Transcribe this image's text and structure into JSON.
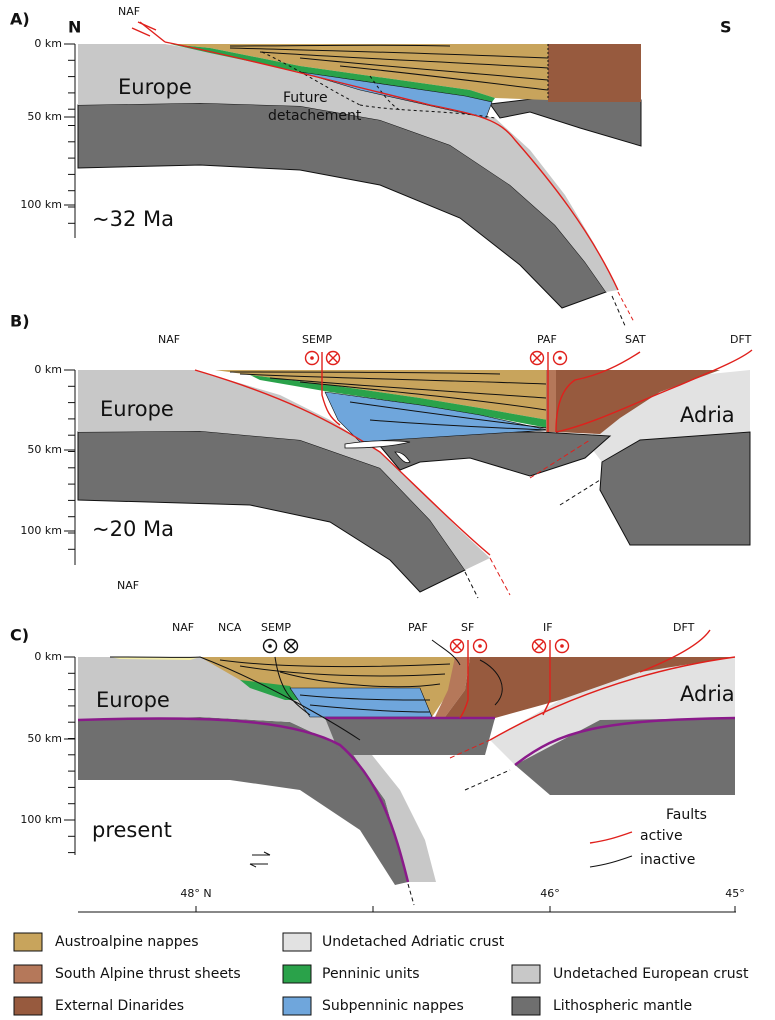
{
  "panels": [
    {
      "label": "A)",
      "north": "N",
      "south": "S",
      "depth_ticks": [
        "0 km",
        "50 km",
        "100 km"
      ],
      "faults": [
        "NAF"
      ],
      "units": [
        "Europe"
      ],
      "annotation": [
        "Future",
        "detachement"
      ],
      "age": "~32 Ma"
    },
    {
      "label": "B)",
      "depth_ticks": [
        "0 km",
        "50 km",
        "100 km"
      ],
      "faults": [
        "NAF",
        "SEMP",
        "PAF",
        "SAT",
        "DFT"
      ],
      "units": [
        "Europe",
        "Adria"
      ],
      "age": "~20 Ma",
      "extra_labels": [
        "NAF"
      ]
    },
    {
      "label": "C)",
      "depth_ticks": [
        "0 km",
        "50 km",
        "100 km"
      ],
      "faults": [
        "NAF",
        "NCA",
        "SEMP",
        "PAF",
        "SF",
        "IF",
        "DFT"
      ],
      "units": [
        "Europe",
        "Adria"
      ],
      "age": "present",
      "fault_legend": {
        "title": "Faults",
        "active": "active",
        "inactive": "inactive"
      }
    }
  ],
  "latitude_axis": [
    "48° N",
    "46°",
    "45°"
  ],
  "legend": [
    {
      "label": "Austroalpine nappes",
      "color": "#c8a45c"
    },
    {
      "label": "South Alpine thrust sheets",
      "color": "#b5785a"
    },
    {
      "label": "External Dinarides",
      "color": "#975a3e"
    },
    {
      "label": "Undetached Adriatic crust",
      "color": "#e2e2e2"
    },
    {
      "label": "Penninic units",
      "color": "#2aa24a"
    },
    {
      "label": "Subpenninic nappes",
      "color": "#6fa6dc"
    },
    {
      "label": "Undetached European crust",
      "color": "#c8c8c8"
    },
    {
      "label": "Lithospheric mantle",
      "color": "#6f6f6f"
    }
  ]
}
